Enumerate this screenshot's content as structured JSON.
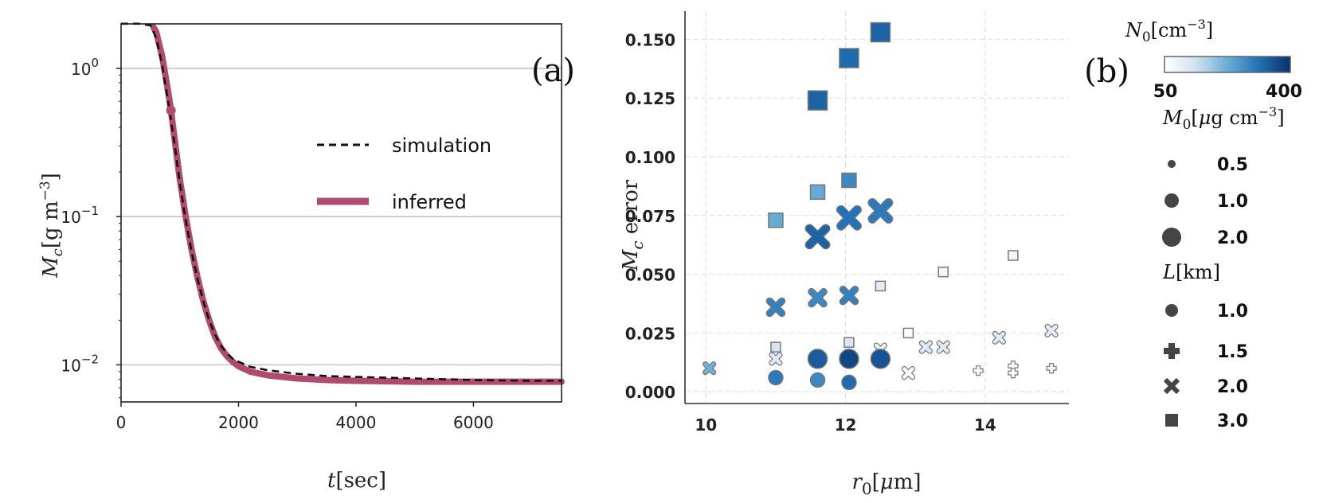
{
  "chart_data": [
    {
      "type": "line",
      "panel_label": "(a)",
      "xlabel": "t[sec]",
      "ylabel": "M_c[g m^-3]",
      "xlim": [
        0,
        7500
      ],
      "ylim_log10": [
        -2.25,
        0.3
      ],
      "y_scale": "log",
      "x_ticks": [
        {
          "v": 0,
          "label": "0"
        },
        {
          "v": 2000,
          "label": "2000"
        },
        {
          "v": 4000,
          "label": "4000"
        },
        {
          "v": 6000,
          "label": "6000"
        }
      ],
      "y_ticks": [
        {
          "exp": 0,
          "base": "10",
          "sup": "0"
        },
        {
          "exp": -1,
          "base": "10",
          "sup": "−1"
        },
        {
          "exp": -2,
          "base": "10",
          "sup": "−2"
        }
      ],
      "grid": "horizontal",
      "legend": {
        "position": "center-right",
        "entries": [
          {
            "label": "simulation",
            "style": "dashed",
            "color": "#111111"
          },
          {
            "label": "inferred",
            "style": "solid",
            "color": "#b04a6e"
          }
        ]
      },
      "series": [
        {
          "name": "simulation",
          "x": [
            0,
            300,
            500,
            600,
            700,
            800,
            900,
            1000,
            1100,
            1200,
            1300,
            1400,
            1500,
            1600,
            1700,
            1800,
            1900,
            2000,
            2200,
            2500,
            3000,
            3500,
            4000,
            5000,
            6000,
            7000,
            7500
          ],
          "y": [
            2.0,
            2.0,
            1.95,
            1.6,
            1.05,
            0.6,
            0.33,
            0.17,
            0.095,
            0.058,
            0.038,
            0.027,
            0.02,
            0.016,
            0.0135,
            0.012,
            0.011,
            0.0105,
            0.0097,
            0.0092,
            0.0087,
            0.0084,
            0.0083,
            0.0081,
            0.0079,
            0.0078,
            0.0078
          ]
        },
        {
          "name": "inferred",
          "x": [
            550,
            600,
            700,
            800,
            850,
            900,
            1000,
            1100,
            1200,
            1300,
            1400,
            1500,
            1600,
            1700,
            1800,
            1900,
            2000,
            2200,
            2500,
            3000,
            3500,
            4000,
            5000,
            6000,
            7000,
            7500
          ],
          "y": [
            1.9,
            1.75,
            1.2,
            0.7,
            0.52,
            0.36,
            0.18,
            0.1,
            0.06,
            0.039,
            0.027,
            0.02,
            0.0155,
            0.013,
            0.0115,
            0.0105,
            0.0098,
            0.009,
            0.0085,
            0.0081,
            0.0079,
            0.0078,
            0.0077,
            0.0077,
            0.0077,
            0.0077
          ]
        }
      ],
      "marker": {
        "x": 850,
        "y": 0.52
      }
    },
    {
      "type": "scatter",
      "panel_label": "(b)",
      "xlabel": "r_0[μm]",
      "ylabel": "M_c error",
      "xlim": [
        9.7,
        15.2
      ],
      "ylim": [
        -0.005,
        0.162
      ],
      "x_ticks": [
        {
          "v": 10,
          "label": "10"
        },
        {
          "v": 12,
          "label": "12"
        },
        {
          "v": 14,
          "label": "14"
        }
      ],
      "y_ticks": [
        {
          "v": 0.0,
          "label": "0.000"
        },
        {
          "v": 0.025,
          "label": "0.025"
        },
        {
          "v": 0.05,
          "label": "0.050"
        },
        {
          "v": 0.075,
          "label": "0.075"
        },
        {
          "v": 0.1,
          "label": "0.100"
        },
        {
          "v": 0.125,
          "label": "0.125"
        },
        {
          "v": 0.15,
          "label": "0.150"
        }
      ],
      "grid": true,
      "colorbar": {
        "title": "N_0[cm^-3]",
        "min_label": "50",
        "max_label": "400",
        "min": 50,
        "max": 400,
        "colors": [
          "#ffffff",
          "#cfe1f2",
          "#6aaed6",
          "#2171b5",
          "#08306b"
        ]
      },
      "size_legend": {
        "title": "M_0[μg cm^-3]",
        "entries": [
          {
            "label": "0.5",
            "value": 0.5
          },
          {
            "label": "1.0",
            "value": 1.0
          },
          {
            "label": "2.0",
            "value": 2.0
          }
        ]
      },
      "marker_legend": {
        "title": "L[km]",
        "entries": [
          {
            "label": "1.0",
            "marker": "circle"
          },
          {
            "label": "1.5",
            "marker": "plus"
          },
          {
            "label": "2.0",
            "marker": "x"
          },
          {
            "label": "3.0",
            "marker": "square"
          }
        ]
      },
      "points": [
        {
          "x": 12.5,
          "y": 0.153,
          "L": 3.0,
          "M0": 2.0,
          "N0": 330
        },
        {
          "x": 12.05,
          "y": 0.142,
          "L": 3.0,
          "M0": 2.0,
          "N0": 320
        },
        {
          "x": 11.6,
          "y": 0.124,
          "L": 3.0,
          "M0": 2.0,
          "N0": 330
        },
        {
          "x": 12.05,
          "y": 0.09,
          "L": 3.0,
          "M0": 1.0,
          "N0": 280
        },
        {
          "x": 11.6,
          "y": 0.085,
          "L": 3.0,
          "M0": 1.0,
          "N0": 230
        },
        {
          "x": 11.0,
          "y": 0.073,
          "L": 3.0,
          "M0": 1.0,
          "N0": 230
        },
        {
          "x": 14.4,
          "y": 0.058,
          "L": 3.0,
          "M0": 0.5,
          "N0": 80
        },
        {
          "x": 13.4,
          "y": 0.051,
          "L": 3.0,
          "M0": 0.5,
          "N0": 80
        },
        {
          "x": 12.5,
          "y": 0.045,
          "L": 3.0,
          "M0": 0.5,
          "N0": 100
        },
        {
          "x": 12.9,
          "y": 0.025,
          "L": 3.0,
          "M0": 0.5,
          "N0": 60
        },
        {
          "x": 12.05,
          "y": 0.021,
          "L": 3.0,
          "M0": 0.5,
          "N0": 120
        },
        {
          "x": 11.0,
          "y": 0.019,
          "L": 3.0,
          "M0": 0.5,
          "N0": 130
        },
        {
          "x": 12.5,
          "y": 0.077,
          "L": 2.0,
          "M0": 2.0,
          "N0": 300
        },
        {
          "x": 12.05,
          "y": 0.074,
          "L": 2.0,
          "M0": 2.0,
          "N0": 310
        },
        {
          "x": 11.6,
          "y": 0.066,
          "L": 2.0,
          "M0": 2.0,
          "N0": 330
        },
        {
          "x": 12.05,
          "y": 0.041,
          "L": 2.0,
          "M0": 1.0,
          "N0": 290
        },
        {
          "x": 11.6,
          "y": 0.04,
          "L": 2.0,
          "M0": 1.0,
          "N0": 280
        },
        {
          "x": 11.0,
          "y": 0.036,
          "L": 2.0,
          "M0": 1.0,
          "N0": 290
        },
        {
          "x": 14.95,
          "y": 0.026,
          "L": 2.0,
          "M0": 0.5,
          "N0": 100
        },
        {
          "x": 14.2,
          "y": 0.023,
          "L": 2.0,
          "M0": 0.5,
          "N0": 110
        },
        {
          "x": 13.4,
          "y": 0.019,
          "L": 2.0,
          "M0": 0.5,
          "N0": 110
        },
        {
          "x": 13.15,
          "y": 0.019,
          "L": 2.0,
          "M0": 0.5,
          "N0": 110
        },
        {
          "x": 12.5,
          "y": 0.018,
          "L": 2.0,
          "M0": 0.5,
          "N0": 90
        },
        {
          "x": 11.0,
          "y": 0.014,
          "L": 2.0,
          "M0": 0.5,
          "N0": 110
        },
        {
          "x": 12.9,
          "y": 0.008,
          "L": 2.0,
          "M0": 0.5,
          "N0": 60
        },
        {
          "x": 10.05,
          "y": 0.01,
          "L": 2.0,
          "M0": 0.5,
          "N0": 220
        },
        {
          "x": 14.4,
          "y": 0.011,
          "L": 1.5,
          "M0": 0.5,
          "N0": 70
        },
        {
          "x": 14.4,
          "y": 0.008,
          "L": 1.5,
          "M0": 0.5,
          "N0": 60
        },
        {
          "x": 14.95,
          "y": 0.01,
          "L": 1.5,
          "M0": 0.5,
          "N0": 70
        },
        {
          "x": 13.9,
          "y": 0.009,
          "L": 1.5,
          "M0": 0.5,
          "N0": 60
        },
        {
          "x": 11.6,
          "y": 0.014,
          "L": 1.0,
          "M0": 2.0,
          "N0": 340
        },
        {
          "x": 12.05,
          "y": 0.014,
          "L": 1.0,
          "M0": 2.0,
          "N0": 370
        },
        {
          "x": 12.5,
          "y": 0.014,
          "L": 1.0,
          "M0": 2.0,
          "N0": 350
        },
        {
          "x": 11.0,
          "y": 0.006,
          "L": 1.0,
          "M0": 1.0,
          "N0": 300
        },
        {
          "x": 11.6,
          "y": 0.005,
          "L": 1.0,
          "M0": 1.0,
          "N0": 280
        },
        {
          "x": 12.05,
          "y": 0.004,
          "L": 1.0,
          "M0": 1.0,
          "N0": 320
        }
      ]
    }
  ]
}
